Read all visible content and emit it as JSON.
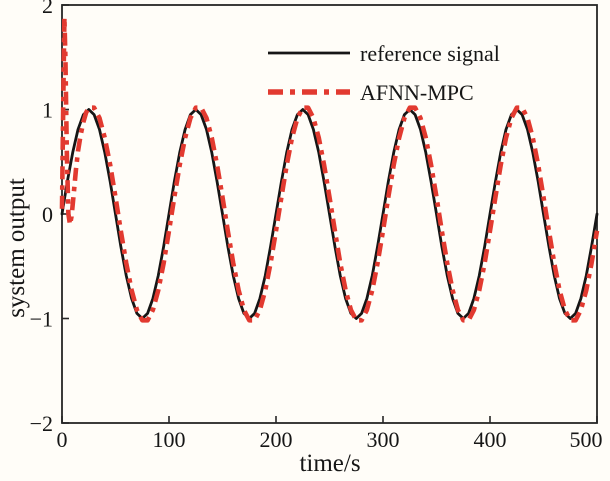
{
  "chart_data": {
    "type": "line",
    "title": "",
    "xlabel": "time/s",
    "ylabel": "system output",
    "xlim": [
      0,
      500
    ],
    "ylim": [
      -2,
      2
    ],
    "x_ticks": [
      0,
      100,
      200,
      300,
      400,
      500
    ],
    "y_ticks": [
      -2,
      -1,
      0,
      1,
      2
    ],
    "grid": false,
    "legend": {
      "position": "upper-center-inside",
      "border": false
    },
    "series": [
      {
        "name": "reference signal",
        "color": "#161616",
        "line_style": "solid",
        "line_width": 2.8,
        "t_start": 0,
        "t_step": 5,
        "values": [
          0,
          0.309,
          0.588,
          0.809,
          0.951,
          1,
          0.951,
          0.809,
          0.588,
          0.309,
          0,
          -0.309,
          -0.588,
          -0.809,
          -0.951,
          -1,
          -0.951,
          -0.809,
          -0.588,
          -0.309,
          0,
          0.309,
          0.588,
          0.809,
          0.951,
          1,
          0.951,
          0.809,
          0.588,
          0.309,
          0,
          -0.309,
          -0.588,
          -0.809,
          -0.951,
          -1,
          -0.951,
          -0.809,
          -0.588,
          -0.309,
          0,
          0.309,
          0.588,
          0.809,
          0.951,
          1,
          0.951,
          0.809,
          0.588,
          0.309,
          0,
          -0.309,
          -0.588,
          -0.809,
          -0.951,
          -1,
          -0.951,
          -0.809,
          -0.588,
          -0.309,
          0,
          0.309,
          0.588,
          0.809,
          0.951,
          1,
          0.951,
          0.809,
          0.588,
          0.309,
          0,
          -0.309,
          -0.588,
          -0.809,
          -0.951,
          -1,
          -0.951,
          -0.809,
          -0.588,
          -0.309,
          0,
          0.309,
          0.588,
          0.809,
          0.951,
          1,
          0.951,
          0.809,
          0.588,
          0.309,
          0,
          -0.309,
          -0.588,
          -0.809,
          -0.951,
          -1,
          -0.951,
          -0.809,
          -0.588,
          -0.309,
          0
        ]
      },
      {
        "name": "AFNN-MPC",
        "color": "#e23a30",
        "line_style": "dash-dot",
        "line_width": 4.6,
        "points": [
          [
            0,
            0.05
          ],
          [
            1.2,
            1.1
          ],
          [
            2.2,
            1.88
          ],
          [
            3.2,
            1.5
          ],
          [
            4.5,
            0.6
          ],
          [
            6,
            0
          ],
          [
            7.5,
            -0.1
          ],
          [
            9,
            -0.02
          ],
          [
            11,
            0.2
          ],
          [
            13,
            0.42
          ],
          [
            15,
            0.6
          ],
          [
            17.5,
            0.76
          ],
          [
            20,
            0.88
          ],
          [
            22.5,
            0.97
          ]
        ],
        "t_start": 25,
        "t_step": 5,
        "values": [
          1.017,
          1.017,
          0.918,
          0.728,
          0.468,
          0.161,
          -0.161,
          -0.468,
          -0.728,
          -0.918,
          -1.017,
          -1.017,
          -0.918,
          -0.728,
          -0.468,
          -0.161,
          0.161,
          0.468,
          0.728,
          0.918,
          1.017,
          1.017,
          0.918,
          0.728,
          0.468,
          0.161,
          -0.161,
          -0.468,
          -0.728,
          -0.918,
          -1.017,
          -1.017,
          -0.918,
          -0.728,
          -0.468,
          -0.161,
          0.161,
          0.468,
          0.728,
          0.918,
          1.017,
          1.017,
          0.918,
          0.728,
          0.468,
          0.161,
          -0.161,
          -0.468,
          -0.728,
          -0.918,
          -1.017,
          -1.017,
          -0.918,
          -0.728,
          -0.468,
          -0.161,
          0.161,
          0.468,
          0.728,
          0.918,
          1.017,
          1.017,
          0.918,
          0.728,
          0.468,
          0.161,
          -0.161,
          -0.468,
          -0.728,
          -0.918,
          -1.017,
          -1.017,
          -0.918,
          -0.728,
          -0.468,
          -0.161,
          0.161,
          0.468,
          0.728,
          0.918,
          1.017,
          1.017,
          0.918,
          0.728,
          0.468,
          0.161,
          -0.161,
          -0.468,
          -0.728,
          -0.918,
          -1.017,
          -1.017,
          -0.918,
          -0.728,
          -0.468,
          -0.161
        ]
      }
    ]
  }
}
